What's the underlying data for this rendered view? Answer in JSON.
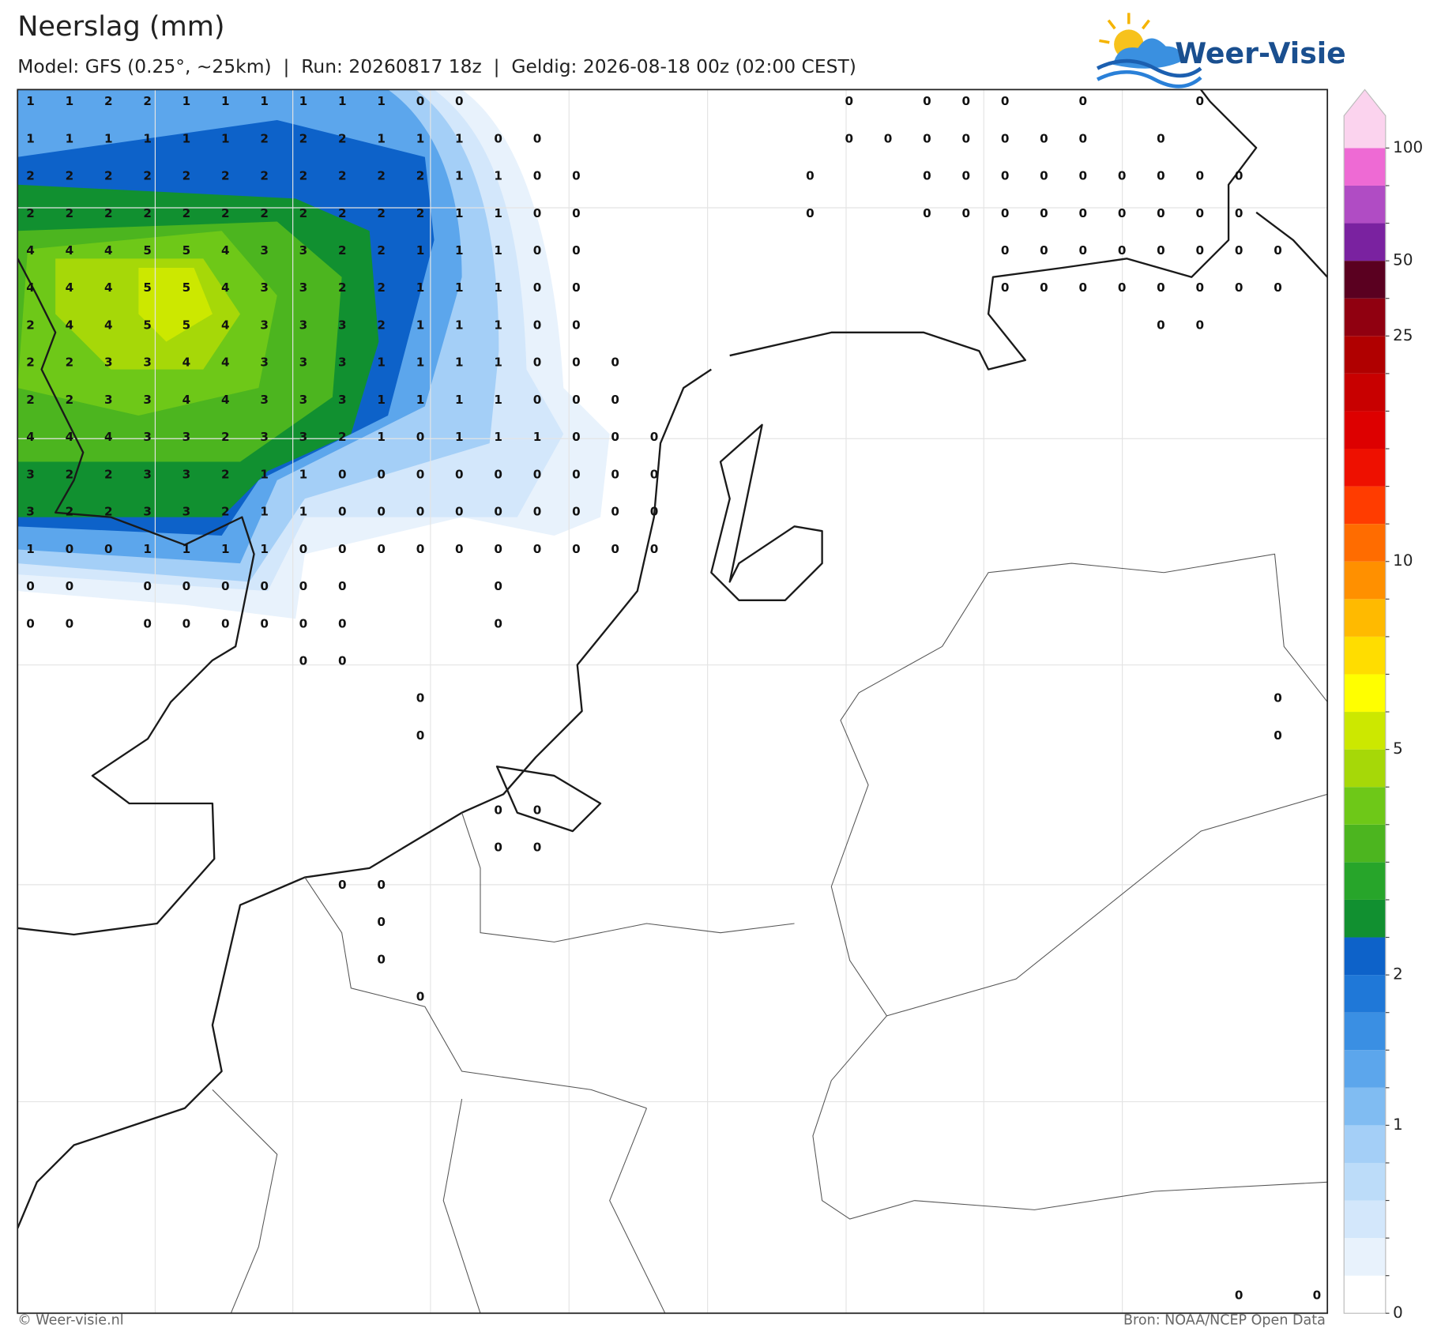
{
  "header": {
    "title": "Neerslag (mm)",
    "subtitle": "Model: GFS (0.25°, ~25km)  |  Run: 20260817 18z  |  Geldig: 2026-08-18 00z (02:00 CEST)"
  },
  "logo": {
    "text": "Weer-Visie"
  },
  "map": {
    "value_grid": [
      [
        1,
        1,
        2,
        2,
        1,
        1,
        1,
        1,
        1,
        1,
        0,
        0,
        null,
        null,
        null,
        null,
        null,
        null,
        null,
        null,
        null,
        0,
        null,
        0,
        0,
        0,
        null,
        0,
        null,
        null,
        0
      ],
      [
        1,
        1,
        1,
        1,
        1,
        1,
        2,
        2,
        2,
        1,
        1,
        1,
        0,
        0,
        null,
        null,
        null,
        null,
        null,
        null,
        null,
        0,
        0,
        0,
        0,
        0,
        0,
        0,
        null,
        0
      ],
      [
        2,
        2,
        2,
        2,
        2,
        2,
        2,
        2,
        2,
        2,
        2,
        1,
        1,
        0,
        0,
        null,
        null,
        null,
        null,
        null,
        0,
        null,
        null,
        0,
        0,
        0,
        0,
        0,
        0,
        0,
        0,
        0
      ],
      [
        2,
        2,
        2,
        2,
        2,
        2,
        2,
        2,
        2,
        2,
        2,
        1,
        1,
        0,
        0,
        null,
        null,
        null,
        null,
        null,
        0,
        null,
        null,
        0,
        0,
        0,
        0,
        0,
        0,
        0,
        0,
        0
      ],
      [
        4,
        4,
        4,
        5,
        5,
        4,
        3,
        3,
        2,
        2,
        1,
        1,
        1,
        0,
        0,
        null,
        null,
        null,
        null,
        null,
        null,
        null,
        null,
        null,
        null,
        0,
        0,
        0,
        0,
        0,
        0,
        0,
        0
      ],
      [
        4,
        4,
        4,
        5,
        5,
        4,
        3,
        3,
        2,
        2,
        1,
        1,
        1,
        0,
        0,
        null,
        null,
        null,
        null,
        null,
        null,
        null,
        null,
        null,
        null,
        0,
        0,
        0,
        0,
        0,
        0,
        0,
        0
      ],
      [
        2,
        4,
        4,
        5,
        5,
        4,
        3,
        3,
        3,
        2,
        1,
        1,
        1,
        0,
        0,
        null,
        null,
        null,
        null,
        null,
        null,
        null,
        null,
        null,
        null,
        null,
        null,
        null,
        null,
        0,
        0
      ],
      [
        2,
        2,
        3,
        3,
        4,
        4,
        3,
        3,
        3,
        1,
        1,
        1,
        1,
        0,
        0,
        0
      ],
      [
        2,
        2,
        3,
        3,
        4,
        4,
        3,
        3,
        3,
        1,
        1,
        1,
        1,
        0,
        0,
        0
      ],
      [
        4,
        4,
        4,
        3,
        3,
        2,
        3,
        3,
        2,
        1,
        0,
        1,
        1,
        1,
        0,
        0,
        0
      ],
      [
        3,
        2,
        2,
        3,
        3,
        2,
        1,
        1,
        0,
        0,
        0,
        0,
        0,
        0,
        0,
        0,
        0
      ],
      [
        3,
        2,
        2,
        3,
        3,
        2,
        1,
        1,
        0,
        0,
        0,
        0,
        0,
        0,
        0,
        0,
        0
      ],
      [
        1,
        0,
        0,
        1,
        1,
        1,
        1,
        0,
        0,
        0,
        0,
        0,
        0,
        0,
        0,
        0,
        0
      ],
      [
        0,
        0,
        null,
        0,
        0,
        0,
        0,
        0,
        0,
        null,
        null,
        null,
        0
      ],
      [
        0,
        0,
        null,
        0,
        0,
        0,
        0,
        0,
        0,
        null,
        null,
        null,
        0
      ],
      [
        null,
        null,
        null,
        null,
        null,
        null,
        null,
        0,
        0
      ],
      [
        null,
        null,
        null,
        null,
        null,
        null,
        null,
        null,
        null,
        null,
        0,
        null,
        null,
        null,
        null,
        null,
        null,
        null,
        null,
        null,
        null,
        null,
        null,
        null,
        null,
        null,
        null,
        null,
        null,
        null,
        null,
        null,
        0
      ],
      [
        null,
        null,
        null,
        null,
        null,
        null,
        null,
        null,
        null,
        null,
        0,
        null,
        null,
        null,
        null,
        null,
        null,
        null,
        null,
        null,
        null,
        null,
        null,
        null,
        null,
        null,
        null,
        null,
        null,
        null,
        null,
        null,
        0
      ],
      [],
      [
        null,
        null,
        null,
        null,
        null,
        null,
        null,
        null,
        null,
        null,
        null,
        null,
        0,
        0
      ],
      [
        null,
        null,
        null,
        null,
        null,
        null,
        null,
        null,
        null,
        null,
        null,
        null,
        0,
        0
      ],
      [
        null,
        null,
        null,
        null,
        null,
        null,
        null,
        null,
        0,
        0
      ],
      [
        null,
        null,
        null,
        null,
        null,
        null,
        null,
        null,
        null,
        0
      ],
      [
        null,
        null,
        null,
        null,
        null,
        null,
        null,
        null,
        null,
        0
      ],
      [
        null,
        null,
        null,
        null,
        null,
        null,
        null,
        null,
        null,
        null,
        0
      ],
      [],
      [],
      [],
      [],
      [],
      [],
      [],
      [
        null,
        null,
        null,
        null,
        null,
        null,
        null,
        null,
        null,
        null,
        null,
        null,
        null,
        null,
        null,
        null,
        null,
        null,
        null,
        null,
        null,
        null,
        null,
        null,
        null,
        null,
        null,
        null,
        null,
        null,
        null,
        0,
        null,
        0
      ]
    ]
  },
  "colorbar": {
    "levels": [
      0,
      0.2,
      0.4,
      0.6,
      0.8,
      1,
      1.25,
      1.5,
      1.75,
      2,
      2.5,
      3,
      3.5,
      4,
      4.5,
      5,
      6,
      7,
      8,
      9,
      10,
      12.5,
      15,
      17.5,
      20,
      22.5,
      25,
      37.5,
      50,
      62.5,
      75,
      100
    ],
    "colors": [
      "#ffffff",
      "#e8f2fc",
      "#d3e7fb",
      "#bcdcf9",
      "#a4cff7",
      "#80bcf2",
      "#5ca6ec",
      "#3a8fe3",
      "#1f78d8",
      "#0d62c9",
      "#119030",
      "#27a52a",
      "#4cb51f",
      "#6ec818",
      "#a6d808",
      "#cce800",
      "#ffff00",
      "#ffdd00",
      "#ffba00",
      "#ff9000",
      "#ff6c00",
      "#ff3c00",
      "#ee1000",
      "#dd0000",
      "#c80000",
      "#b00000",
      "#900010",
      "#5a0020",
      "#7a22a0",
      "#b04cc4",
      "#ee6ad4"
    ],
    "extend_color": "#fbd3ee",
    "ticks": [
      0,
      1,
      2,
      5,
      10,
      25,
      50,
      100
    ]
  },
  "footer": {
    "left": "© Weer-visie.nl",
    "right": "Bron: NOAA/NCEP Open Data"
  }
}
